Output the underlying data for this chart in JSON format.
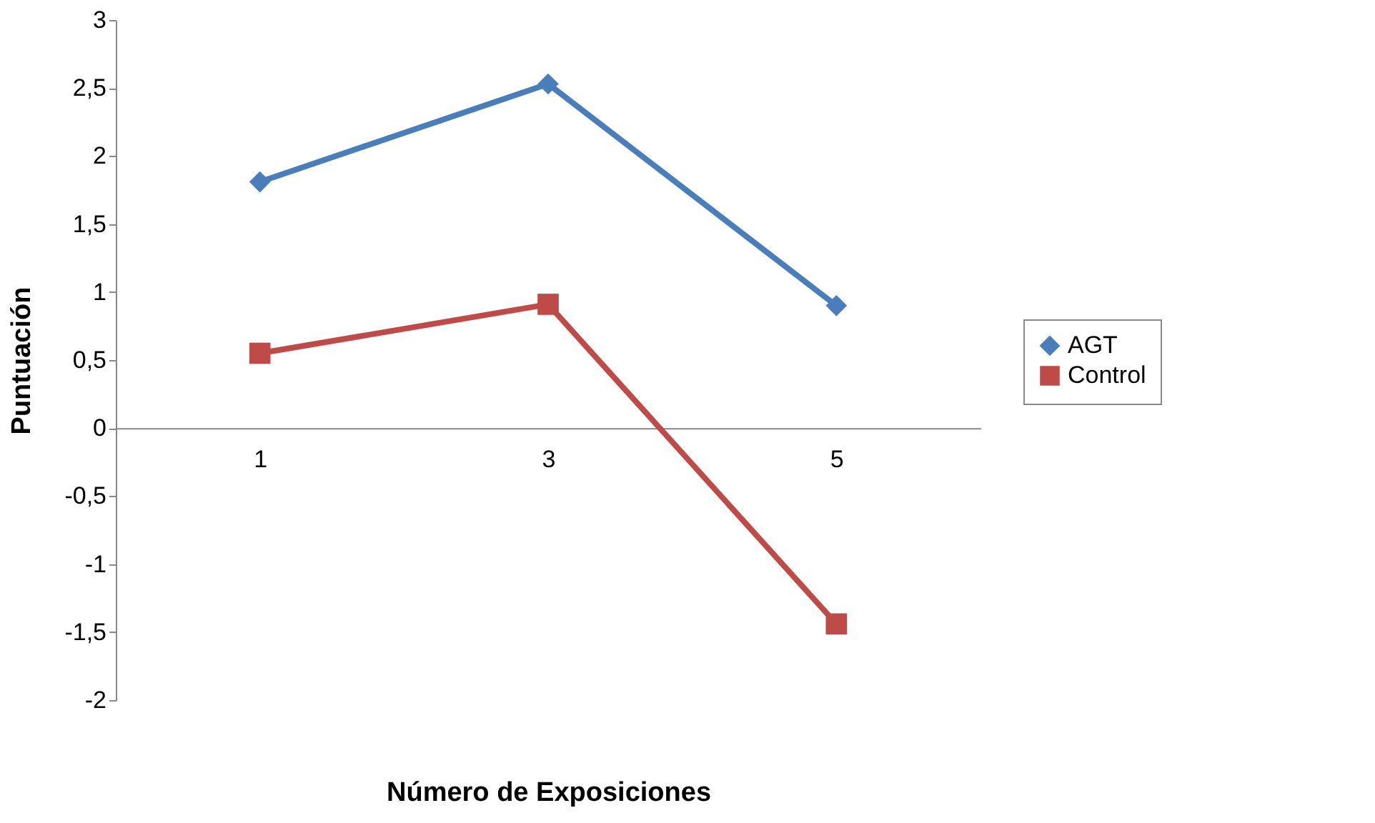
{
  "chart_data": {
    "type": "line",
    "xlabel": "Número de Exposiciones",
    "ylabel": "Puntuación",
    "categories": [
      "1",
      "3",
      "5"
    ],
    "series": [
      {
        "name": "AGT",
        "color": "#4a7ebb",
        "marker": "diamond",
        "values": [
          1.81,
          2.53,
          0.9
        ]
      },
      {
        "name": "Control",
        "color": "#be4b48",
        "marker": "square",
        "values": [
          0.55,
          0.91,
          -1.44
        ]
      }
    ],
    "ylim": [
      -2,
      3
    ],
    "yticks": [
      {
        "value": -2,
        "label": "-2"
      },
      {
        "value": -1.5,
        "label": "-1,5"
      },
      {
        "value": -1,
        "label": "-1"
      },
      {
        "value": -0.5,
        "label": "-0,5"
      },
      {
        "value": 0,
        "label": "0"
      },
      {
        "value": 0.5,
        "label": "0,5"
      },
      {
        "value": 1,
        "label": "1"
      },
      {
        "value": 1.5,
        "label": "1,5"
      },
      {
        "value": 2,
        "label": "2"
      },
      {
        "value": 2.5,
        "label": "2,5"
      },
      {
        "value": 3,
        "label": "3"
      }
    ],
    "grid": false,
    "legend": "right",
    "line_style": "solid"
  }
}
